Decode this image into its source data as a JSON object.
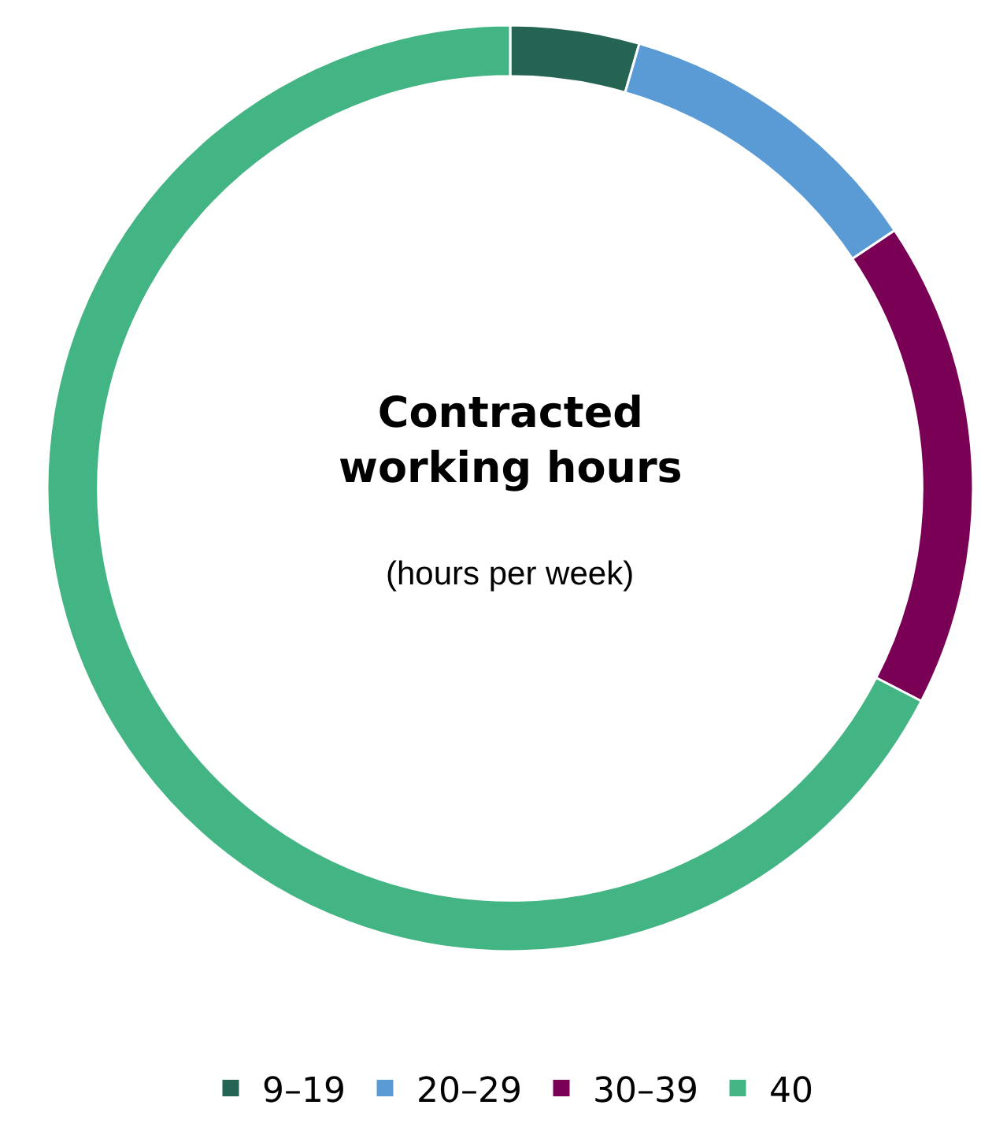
{
  "chart_data": {
    "type": "donut",
    "title": "Contracted working hours",
    "subtitle": "(hours per week)",
    "categories": [
      "9–19",
      "20–29",
      "30–39",
      "40"
    ],
    "values": [
      4.5,
      11.1,
      17.0,
      67.4
    ],
    "colors": [
      "#256452",
      "#5b9bd5",
      "#7a0055",
      "#43b484"
    ],
    "legend": "bottom"
  }
}
